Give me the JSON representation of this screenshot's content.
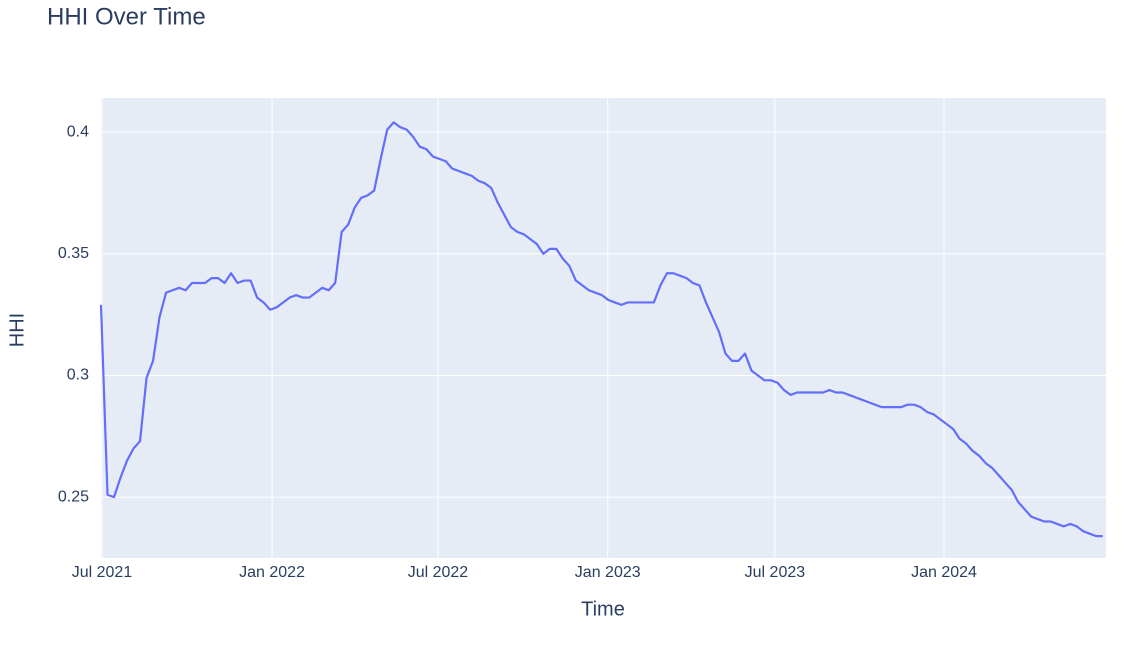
{
  "chart_data": {
    "type": "line",
    "title": "HHI Over Time",
    "x_label": "Time",
    "y_label": "HHI",
    "series": [
      {
        "name": "HHI",
        "color": "#636efa",
        "values": [
          0.329,
          0.251,
          0.25,
          0.258,
          0.265,
          0.27,
          0.273,
          0.299,
          0.306,
          0.324,
          0.334,
          0.335,
          0.336,
          0.335,
          0.338,
          0.338,
          0.338,
          0.34,
          0.34,
          0.338,
          0.342,
          0.338,
          0.339,
          0.339,
          0.332,
          0.33,
          0.327,
          0.328,
          0.33,
          0.332,
          0.333,
          0.332,
          0.332,
          0.334,
          0.336,
          0.335,
          0.338,
          0.359,
          0.362,
          0.369,
          0.373,
          0.374,
          0.376,
          0.389,
          0.401,
          0.404,
          0.402,
          0.401,
          0.398,
          0.394,
          0.393,
          0.39,
          0.389,
          0.388,
          0.385,
          0.384,
          0.383,
          0.382,
          0.38,
          0.379,
          0.377,
          0.371,
          0.366,
          0.361,
          0.359,
          0.358,
          0.356,
          0.354,
          0.35,
          0.352,
          0.352,
          0.348,
          0.345,
          0.339,
          0.337,
          0.335,
          0.334,
          0.333,
          0.331,
          0.33,
          0.329,
          0.33,
          0.33,
          0.33,
          0.33,
          0.33,
          0.337,
          0.342,
          0.342,
          0.341,
          0.34,
          0.338,
          0.337,
          0.33,
          0.324,
          0.318,
          0.309,
          0.306,
          0.306,
          0.309,
          0.302,
          0.3,
          0.298,
          0.298,
          0.297,
          0.294,
          0.292,
          0.293,
          0.293,
          0.293,
          0.293,
          0.293,
          0.294,
          0.293,
          0.293,
          0.292,
          0.291,
          0.29,
          0.289,
          0.288,
          0.287,
          0.287,
          0.287,
          0.287,
          0.288,
          0.288,
          0.287,
          0.285,
          0.284,
          0.282,
          0.28,
          0.278,
          0.274,
          0.272,
          0.269,
          0.267,
          0.264,
          0.262,
          0.259,
          0.256,
          0.253,
          0.248,
          0.245,
          0.242,
          0.241,
          0.24,
          0.24,
          0.239,
          0.238,
          0.239,
          0.238,
          0.236,
          0.235,
          0.234,
          0.234
        ]
      }
    ],
    "xlim": [
      0,
      154.5
    ],
    "xticks": [
      {
        "value": 0.15,
        "label": "Jul 2021"
      },
      {
        "value": 26.3,
        "label": "Jan 2022"
      },
      {
        "value": 51.8,
        "label": "Jul 2022"
      },
      {
        "value": 77.9,
        "label": "Jan 2023"
      },
      {
        "value": 103.6,
        "label": "Jul 2023"
      },
      {
        "value": 129.6,
        "label": "Jan 2024"
      }
    ],
    "ylim": [
      0.225,
      0.414
    ],
    "yticks": [
      0.25,
      0.3,
      0.35,
      0.4
    ],
    "grid": true
  }
}
